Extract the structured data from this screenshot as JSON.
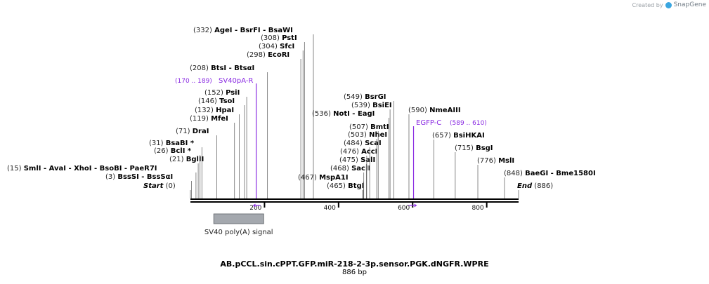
{
  "credit": {
    "prefix": "Created by",
    "brand": "SnapGene"
  },
  "plasmid": {
    "name": "AB.pCCL.sin.cPPT.GFP.miR-218-2-3p.sensor.PGK.dNGFR.WPRE",
    "length_label": "886 bp",
    "length": 886
  },
  "axis": {
    "ticks": [
      200,
      400,
      600,
      800
    ]
  },
  "colors": {
    "primer": "#8a2be2",
    "backbone": "#000000",
    "feature": "#a4a8ae"
  },
  "sites": [
    {
      "pos": "(0)",
      "names": [
        "Start"
      ],
      "italic": true,
      "at": 0
    },
    {
      "pos": "(3)",
      "names": [
        "BssSI",
        "BssSαI"
      ],
      "at": 3
    },
    {
      "pos": "(15)",
      "names": [
        "SmlI",
        "AvaI",
        "XhoI",
        "BsoBI",
        "PaeR7I"
      ],
      "at": 15
    },
    {
      "pos": "(21)",
      "names": [
        "BglII"
      ],
      "at": 21
    },
    {
      "pos": "(26)",
      "names": [
        "BclI *"
      ],
      "at": 26
    },
    {
      "pos": "(31)",
      "names": [
        "BsaBI *"
      ],
      "at": 31
    },
    {
      "pos": "(71)",
      "names": [
        "DraI"
      ],
      "at": 71
    },
    {
      "pos": "(119)",
      "names": [
        "MfeI"
      ],
      "at": 119
    },
    {
      "pos": "(132)",
      "names": [
        "HpaI"
      ],
      "at": 132
    },
    {
      "pos": "(146)",
      "names": [
        "TsoI"
      ],
      "at": 146
    },
    {
      "pos": "(152)",
      "names": [
        "PsiI"
      ],
      "at": 152
    },
    {
      "pos": "(208)",
      "names": [
        "BtsI",
        "BtsαI"
      ],
      "at": 208
    },
    {
      "pos": "(298)",
      "names": [
        "EcoRI"
      ],
      "at": 298
    },
    {
      "pos": "(304)",
      "names": [
        "SfcI"
      ],
      "at": 304
    },
    {
      "pos": "(308)",
      "names": [
        "PstI"
      ],
      "at": 308
    },
    {
      "pos": "(332)",
      "names": [
        "AgeI",
        "BsrFI",
        "BsaWI"
      ],
      "at": 332
    },
    {
      "pos": "(465)",
      "names": [
        "BtgI"
      ],
      "at": 465
    },
    {
      "pos": "(467)",
      "names": [
        "MspA1I"
      ],
      "at": 467
    },
    {
      "pos": "(468)",
      "names": [
        "SacII"
      ],
      "at": 468
    },
    {
      "pos": "(475)",
      "names": [
        "SalI"
      ],
      "at": 475
    },
    {
      "pos": "(476)",
      "names": [
        "AccI"
      ],
      "at": 476
    },
    {
      "pos": "(484)",
      "names": [
        "ScaI"
      ],
      "at": 484
    },
    {
      "pos": "(503)",
      "names": [
        "NheI"
      ],
      "at": 503
    },
    {
      "pos": "(507)",
      "names": [
        "BmtI"
      ],
      "at": 507
    },
    {
      "pos": "(536)",
      "names": [
        "NotI",
        "EagI"
      ],
      "at": 536
    },
    {
      "pos": "(539)",
      "names": [
        "BsiEI"
      ],
      "at": 539
    },
    {
      "pos": "(549)",
      "names": [
        "BsrGI"
      ],
      "at": 549
    },
    {
      "pos": "(590)",
      "names": [
        "NmeAIII"
      ],
      "at": 590
    },
    {
      "pos": "(657)",
      "names": [
        "BsiHKAI"
      ],
      "at": 657
    },
    {
      "pos": "(715)",
      "names": [
        "BsgI"
      ],
      "at": 715
    },
    {
      "pos": "(776)",
      "names": [
        "MslI"
      ],
      "at": 776
    },
    {
      "pos": "(848)",
      "names": [
        "BaeGI",
        "Bme1580I"
      ],
      "at": 848
    },
    {
      "pos": "(886)",
      "names": [
        "End"
      ],
      "italic": true,
      "at": 886
    }
  ],
  "primers": [
    {
      "name": "SV40pA-R",
      "range": "(170 .. 189)",
      "start": 170,
      "end": 189,
      "direction": "left"
    },
    {
      "name": "EGFP-C",
      "range": "(589 .. 610)",
      "start": 589,
      "end": 610,
      "direction": "right"
    }
  ],
  "features": [
    {
      "name": "SV40 poly(A) signal",
      "start": 80,
      "end": 215
    }
  ]
}
